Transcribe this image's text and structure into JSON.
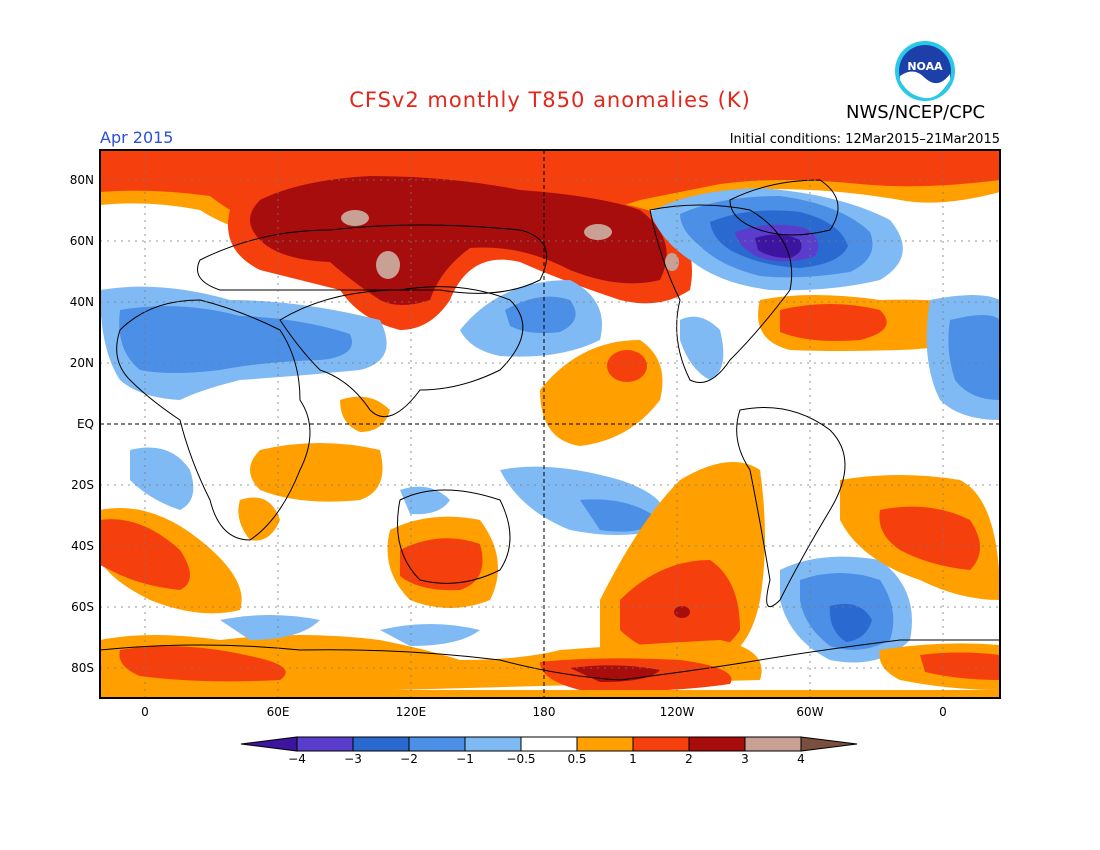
{
  "header": {
    "title": "CFSv2 monthly T850 anomalies (K)",
    "agency": "NWS/NCEP/CPC",
    "logo_text": "NOAA",
    "valid_month": "Apr 2015",
    "initial_conditions": "Initial conditions: 12Mar2015–21Mar2015"
  },
  "axes": {
    "lat_labels": [
      "80N",
      "60N",
      "40N",
      "20N",
      "EQ",
      "20S",
      "40S",
      "60S",
      "80S"
    ],
    "lon_labels": [
      "0",
      "60E",
      "120E",
      "180",
      "120W",
      "60W",
      "0"
    ]
  },
  "colorbar": {
    "labels": [
      "−4",
      "−3",
      "−2",
      "−1",
      "−0.5",
      "0.5",
      "1",
      "2",
      "3",
      "4"
    ],
    "colors": [
      "#3d14a0",
      "#5a3dcc",
      "#2a6ad0",
      "#4b8fe6",
      "#80baf4",
      "#ffffff",
      "#ff9f00",
      "#f53f0c",
      "#a80d0d",
      "#c8a094",
      "#7a4f3f"
    ]
  },
  "colors": {
    "title": "#e4261a",
    "month": "#2b4fd6"
  }
}
